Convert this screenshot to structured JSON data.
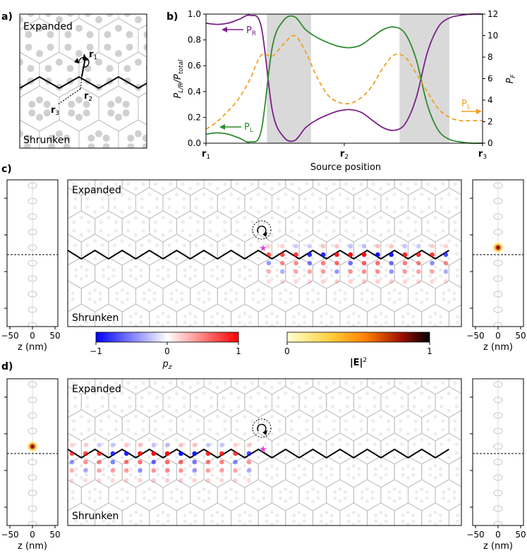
{
  "panels": {
    "a": {
      "label": "a)",
      "expanded": "Expanded",
      "shrunken": "Shrunken",
      "r1": "r",
      "r1_sub": "1",
      "r2": "r",
      "r2_sub": "2",
      "r3": "r",
      "r3_sub": "3"
    },
    "b": {
      "label": "b)",
      "ylabel_left": "P",
      "ylabel_left_sub": "L/R",
      "ylabel_left_den": "P",
      "ylabel_left_den_sub": "total",
      "ylabel_right": "P",
      "ylabel_right_sub": "F",
      "xlabel": "Source position",
      "xticks": [
        {
          "main": "r",
          "sub": "1",
          "pos": 0
        },
        {
          "main": "r",
          "sub": "2",
          "pos": 0.5
        },
        {
          "main": "r",
          "sub": "3",
          "pos": 1
        }
      ],
      "yticks_left": [
        "0.0",
        "0.2",
        "0.4",
        "0.6",
        "0.8",
        "1.0"
      ],
      "yticks_right": [
        "0",
        "2",
        "4",
        "6",
        "8",
        "10",
        "12"
      ],
      "legend_PR": "P",
      "legend_PR_sub": "R",
      "legend_PL": "P",
      "legend_PL_sub": "L",
      "legend_PL2": "P",
      "legend_PL2_sub": "L"
    },
    "c": {
      "label": "c)",
      "expanded": "Expanded",
      "shrunken": "Shrunken"
    },
    "d": {
      "label": "d)",
      "expanded": "Expanded",
      "shrunken": "Shrunken"
    }
  },
  "colorbars": {
    "pz": {
      "label": "p",
      "label_sub": "z",
      "ticks": [
        "−1",
        "0",
        "1"
      ]
    },
    "E": {
      "label": "|E|",
      "label_sup": "2",
      "ticks": [
        "0",
        "1"
      ]
    }
  },
  "side_axes": {
    "xlabel": "z (nm)",
    "xticks": [
      "−50",
      "0",
      "50"
    ]
  },
  "colors": {
    "PR": "#7b1f8a",
    "PL": "#2e8b2e",
    "PF": "#f0a020",
    "shade": "#d9d9d9",
    "hex": "#bdbdbd",
    "negative": "#0000ff",
    "positive": "#ff0000",
    "star": "#e040e0"
  },
  "chart_data": {
    "type": "line",
    "xlabel": "Source position",
    "x": [
      0,
      0.04,
      0.08,
      0.12,
      0.16,
      0.2,
      0.24,
      0.28,
      0.32,
      0.36,
      0.4,
      0.44,
      0.48,
      0.52,
      0.56,
      0.6,
      0.64,
      0.68,
      0.72,
      0.76,
      0.8,
      0.84,
      0.88,
      0.92,
      0.96,
      1.0
    ],
    "series": [
      {
        "name": "P_R",
        "axis": "left",
        "values": [
          0.93,
          0.92,
          0.93,
          0.96,
          0.99,
          0.9,
          0.25,
          0.05,
          0.02,
          0.12,
          0.18,
          0.22,
          0.25,
          0.26,
          0.24,
          0.18,
          0.12,
          0.1,
          0.15,
          0.35,
          0.7,
          0.9,
          0.97,
          0.99,
          1.0,
          1.0
        ]
      },
      {
        "name": "P_L",
        "axis": "left",
        "values": [
          0.07,
          0.08,
          0.07,
          0.04,
          0.01,
          0.1,
          0.75,
          0.95,
          0.98,
          0.88,
          0.82,
          0.78,
          0.75,
          0.74,
          0.76,
          0.82,
          0.88,
          0.9,
          0.85,
          0.65,
          0.3,
          0.1,
          0.03,
          0.01,
          0.0,
          0.0
        ]
      },
      {
        "name": "P_F",
        "axis": "right",
        "values": [
          1.3,
          2.0,
          3.0,
          4.2,
          6.0,
          8.2,
          8.1,
          9.2,
          10.0,
          8.5,
          6.2,
          4.5,
          3.8,
          3.7,
          4.2,
          5.3,
          7.0,
          8.2,
          8.0,
          6.5,
          4.8,
          3.2,
          2.4,
          2.1,
          2.1,
          2.1
        ]
      }
    ],
    "ylim_left": [
      0,
      1
    ],
    "ylim_right": [
      0,
      12
    ],
    "shaded_intervals": [
      [
        0.22,
        0.38
      ],
      [
        0.7,
        0.88
      ]
    ]
  }
}
